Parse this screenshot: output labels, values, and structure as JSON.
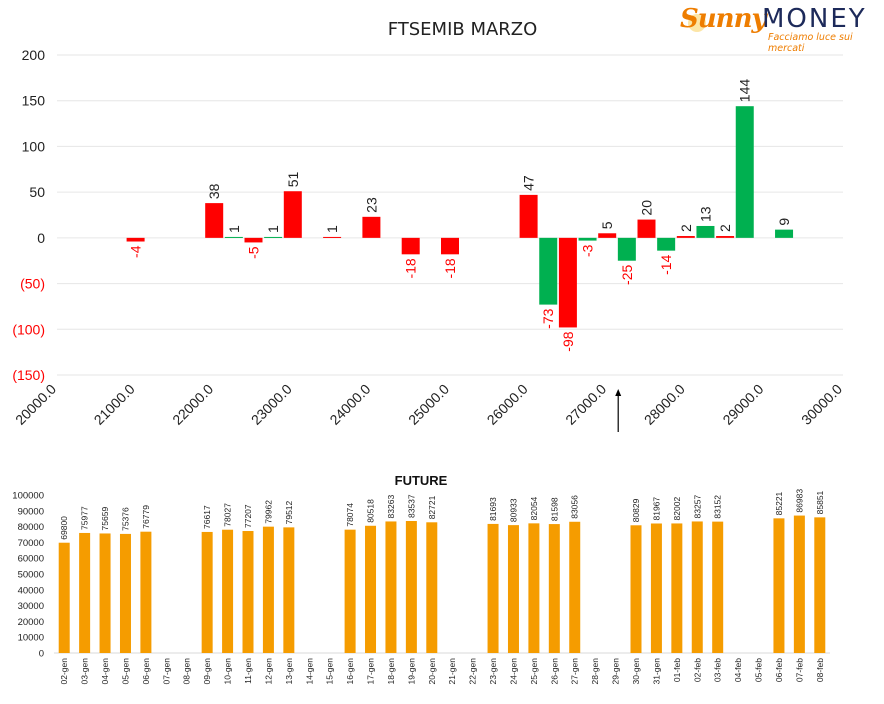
{
  "logo": {
    "brand_a": "Sunny",
    "brand_b": "MONEY",
    "tagline": "Facciamo luce sui mercati"
  },
  "chart_data": [
    {
      "type": "bar",
      "title": "FTSEMIB MARZO",
      "xlabel": "",
      "ylabel": "",
      "ylim": [
        -150,
        200
      ],
      "y_ticks": [
        200,
        150,
        100,
        50,
        0,
        -50,
        -100,
        -150
      ],
      "y_tick_labels": [
        "200",
        "150",
        "100",
        "50",
        "0",
        "(50)",
        "(100)",
        "(150)"
      ],
      "xlim": [
        20000,
        30000
      ],
      "x_ticks": [
        20000,
        21000,
        22000,
        23000,
        24000,
        25000,
        26000,
        27000,
        28000,
        29000,
        30000
      ],
      "x_tick_labels": [
        "20000.0",
        "21000.0",
        "22000.0",
        "23000.0",
        "24000.0",
        "25000.0",
        "26000.0",
        "27000.0",
        "28000.0",
        "29000.0",
        "30000.0"
      ],
      "grid": true,
      "current_price_marker": 27000,
      "bars": [
        {
          "x": 21000,
          "value": -4,
          "color": "#ff0000",
          "label": "-4"
        },
        {
          "x": 22000,
          "value": 38,
          "color": "#ff0000",
          "label": "38"
        },
        {
          "x": 22250,
          "value": 1,
          "color": "#00b050",
          "label": "1"
        },
        {
          "x": 22500,
          "value": -5,
          "color": "#ff0000",
          "label": "-5"
        },
        {
          "x": 22750,
          "value": 1,
          "color": "#00b050",
          "label": "1"
        },
        {
          "x": 23000,
          "value": 51,
          "color": "#ff0000",
          "label": "51"
        },
        {
          "x": 23500,
          "value": 1,
          "color": "#ff0000",
          "label": "1"
        },
        {
          "x": 24000,
          "value": 23,
          "color": "#ff0000",
          "label": "23"
        },
        {
          "x": 24500,
          "value": -18,
          "color": "#ff0000",
          "label": "-18"
        },
        {
          "x": 25000,
          "value": -18,
          "color": "#ff0000",
          "label": "-18"
        },
        {
          "x": 26000,
          "value": 47,
          "color": "#ff0000",
          "label": "47"
        },
        {
          "x": 26250,
          "value": -73,
          "color": "#00b050",
          "label": "-73"
        },
        {
          "x": 26500,
          "value": -98,
          "color": "#ff0000",
          "label": "-98"
        },
        {
          "x": 26750,
          "value": -3,
          "color": "#00b050",
          "label": "-3"
        },
        {
          "x": 27000,
          "value": 5,
          "color": "#ff0000",
          "label": "5"
        },
        {
          "x": 27250,
          "value": -25,
          "color": "#00b050",
          "label": "-25"
        },
        {
          "x": 27500,
          "value": 20,
          "color": "#ff0000",
          "label": "20"
        },
        {
          "x": 27750,
          "value": -14,
          "color": "#00b050",
          "label": "-14"
        },
        {
          "x": 28000,
          "value": 2,
          "color": "#ff0000",
          "label": "2"
        },
        {
          "x": 28250,
          "value": 13,
          "color": "#00b050",
          "label": "13"
        },
        {
          "x": 28500,
          "value": 2,
          "color": "#ff0000",
          "label": "2"
        },
        {
          "x": 28750,
          "value": 144,
          "color": "#00b050",
          "label": "144"
        },
        {
          "x": 29250,
          "value": 9,
          "color": "#00b050",
          "label": "9"
        }
      ]
    },
    {
      "type": "bar",
      "title": "FUTURE",
      "ylim": [
        0,
        100000
      ],
      "y_ticks": [
        0,
        10000,
        20000,
        30000,
        40000,
        50000,
        60000,
        70000,
        80000,
        90000,
        100000
      ],
      "y_tick_labels": [
        "0",
        "10000",
        "20000",
        "30000",
        "40000",
        "50000",
        "60000",
        "70000",
        "80000",
        "90000",
        "100000"
      ],
      "bar_color": "#f59c00",
      "categories": [
        "02-gen",
        "03-gen",
        "04-gen",
        "05-gen",
        "06-gen",
        "07-gen",
        "08-gen",
        "09-gen",
        "10-gen",
        "11-gen",
        "12-gen",
        "13-gen",
        "14-gen",
        "15-gen",
        "16-gen",
        "17-gen",
        "18-gen",
        "19-gen",
        "20-gen",
        "21-gen",
        "22-gen",
        "23-gen",
        "24-gen",
        "25-gen",
        "26-gen",
        "27-gen",
        "28-gen",
        "29-gen",
        "30-gen",
        "31-gen",
        "01-feb",
        "02-feb",
        "03-feb",
        "04-feb",
        "05-feb",
        "06-feb",
        "07-feb",
        "08-feb"
      ],
      "values": [
        69800,
        75977,
        75659,
        75376,
        76779,
        null,
        null,
        76617,
        78027,
        77207,
        79962,
        79512,
        null,
        null,
        78074,
        80518,
        83263,
        83537,
        82721,
        null,
        null,
        81693,
        80933,
        82054,
        81598,
        83056,
        null,
        null,
        80829,
        81967,
        82002,
        83257,
        83152,
        null,
        null,
        85221,
        86983,
        85851
      ]
    }
  ]
}
